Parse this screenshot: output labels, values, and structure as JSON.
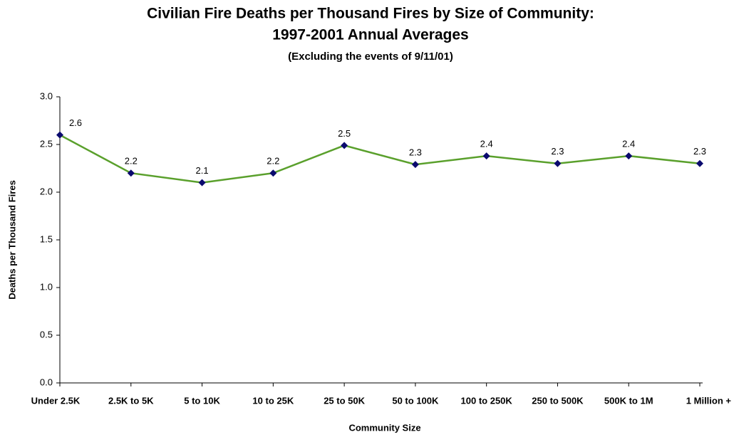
{
  "chart_data": {
    "type": "line",
    "title": [
      "Civilian Fire Deaths per Thousand Fires by Size of Community:",
      "1997-2001 Annual Averages"
    ],
    "subtitle": "(Excluding the events of 9/11/01)",
    "x_label": "Community Size",
    "y_label": "Deaths per Thousand Fires",
    "categories": [
      "Under 2.5K",
      "2.5K to 5K",
      "5 to 10K",
      "10 to 25K",
      "25 to 50K",
      "50 to 100K",
      "100 to 250K",
      "250 to 500K",
      "500K to 1M",
      "1 Million +"
    ],
    "series": [
      {
        "name": "Deaths per Thousand Fires",
        "color": "#5aa02c",
        "marker_color": "#0a0a6e",
        "values": [
          2.6,
          2.2,
          2.1,
          2.2,
          2.49,
          2.29,
          2.38,
          2.3,
          2.38,
          2.3
        ],
        "value_labels": [
          "2.6",
          "2.2",
          "2.1",
          "2.2",
          "2.5",
          "2.3",
          "2.4",
          "2.3",
          "2.4",
          "2.3"
        ]
      }
    ],
    "ylim": [
      0,
      3
    ],
    "yticks": [
      {
        "value": 0,
        "label": "0.0"
      },
      0.5,
      {
        "value": 1,
        "label": "1.0"
      },
      1.5,
      {
        "value": 2,
        "label": "2.0"
      },
      2.5,
      {
        "value": 3,
        "label": "3.0"
      }
    ],
    "grid": false
  }
}
